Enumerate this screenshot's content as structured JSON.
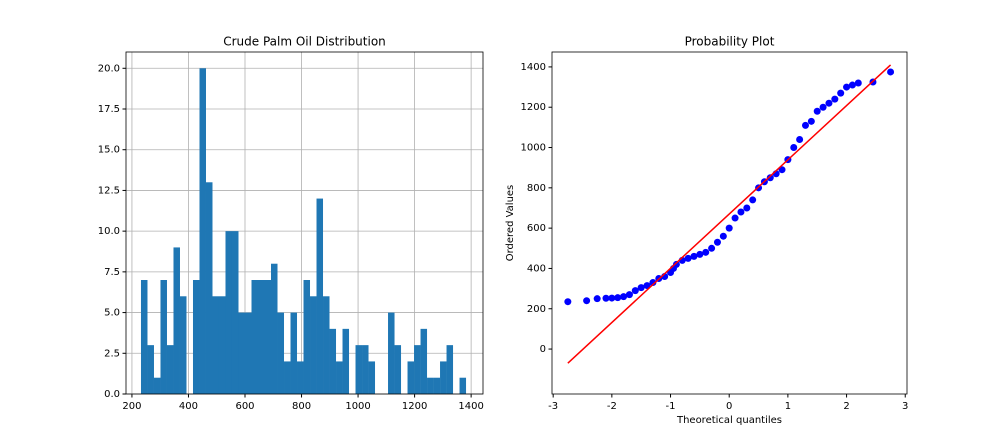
{
  "chart_data": [
    {
      "type": "histogram",
      "title": "Crude Palm Oil Distribution",
      "bins": [
        232,
        255,
        278,
        301,
        324,
        347,
        370,
        393,
        416,
        439,
        462,
        485,
        508,
        531,
        554,
        577,
        600,
        623,
        646,
        669,
        692,
        715,
        738,
        761,
        784,
        807,
        830,
        853,
        876,
        899,
        922,
        945,
        968,
        991,
        1014,
        1037,
        1060,
        1083,
        1106,
        1129,
        1152,
        1175,
        1198,
        1221,
        1244,
        1267,
        1290,
        1313,
        1336,
        1359,
        1382
      ],
      "values": [
        7,
        3,
        1,
        7,
        3,
        9,
        6,
        0,
        7,
        20,
        13,
        6,
        6,
        10,
        10,
        5,
        5,
        7,
        7,
        7,
        8,
        5,
        2,
        5,
        2,
        7,
        6,
        12,
        6,
        4,
        2,
        4,
        0,
        3,
        3,
        2,
        0,
        0,
        5,
        3,
        0,
        2,
        3,
        4,
        1,
        1,
        2,
        3,
        0,
        1
      ],
      "color": "#1f77b4",
      "grid": true,
      "xlim": [
        179,
        1442
      ],
      "xticks": [
        200,
        400,
        600,
        800,
        1000,
        1200,
        1400
      ],
      "ylim": [
        0,
        21
      ],
      "yticks": [
        {
          "value": 0,
          "label": "0.0"
        },
        {
          "value": 2.5,
          "label": "2.5"
        },
        {
          "value": 5,
          "label": "5.0"
        },
        {
          "value": 7.5,
          "label": "7.5"
        },
        {
          "value": 10,
          "label": "10.0"
        },
        {
          "value": 12.5,
          "label": "12.5"
        },
        {
          "value": 15,
          "label": "15.0"
        },
        {
          "value": 17.5,
          "label": "17.5"
        },
        {
          "value": 20,
          "label": "20.0"
        }
      ]
    },
    {
      "type": "scatter",
      "title": "Probability Plot",
      "x_label": "Theoretical quantiles",
      "y_label": "Ordered Values",
      "grid": false,
      "xlim": [
        -3.02,
        3.03
      ],
      "xticks": [
        -3,
        -2,
        -1,
        0,
        1,
        2,
        3
      ],
      "ylim": [
        -223,
        1474
      ],
      "yticks": [
        0,
        200,
        400,
        600,
        800,
        1000,
        1200,
        1400
      ],
      "series": [
        {
          "mode": "markers",
          "color": "#0000ff",
          "x": [
            -2.75,
            -2.43,
            -2.25,
            -2.1,
            -2.0,
            -1.9,
            -1.8,
            -1.7,
            -1.6,
            -1.5,
            -1.4,
            -1.3,
            -1.2,
            -1.1,
            -1.0,
            -0.95,
            -0.9,
            -0.8,
            -0.7,
            -0.6,
            -0.5,
            -0.4,
            -0.3,
            -0.2,
            -0.1,
            0.0,
            0.1,
            0.2,
            0.3,
            0.4,
            0.5,
            0.6,
            0.7,
            0.8,
            0.9,
            1.0,
            1.1,
            1.2,
            1.3,
            1.4,
            1.5,
            1.6,
            1.7,
            1.8,
            1.9,
            2.0,
            2.1,
            2.2,
            2.45,
            2.75
          ],
          "values": [
            235,
            240,
            250,
            252,
            253,
            255,
            260,
            270,
            290,
            305,
            315,
            330,
            350,
            360,
            380,
            400,
            420,
            440,
            450,
            460,
            470,
            480,
            500,
            530,
            560,
            600,
            650,
            680,
            700,
            740,
            800,
            830,
            850,
            870,
            890,
            940,
            1000,
            1040,
            1110,
            1130,
            1180,
            1200,
            1220,
            1240,
            1270,
            1300,
            1310,
            1320,
            1325,
            1375
          ]
        },
        {
          "mode": "line",
          "color": "#ff0000",
          "x": [
            -2.75,
            2.75
          ],
          "values": [
            -70,
            1410
          ]
        }
      ]
    }
  ]
}
